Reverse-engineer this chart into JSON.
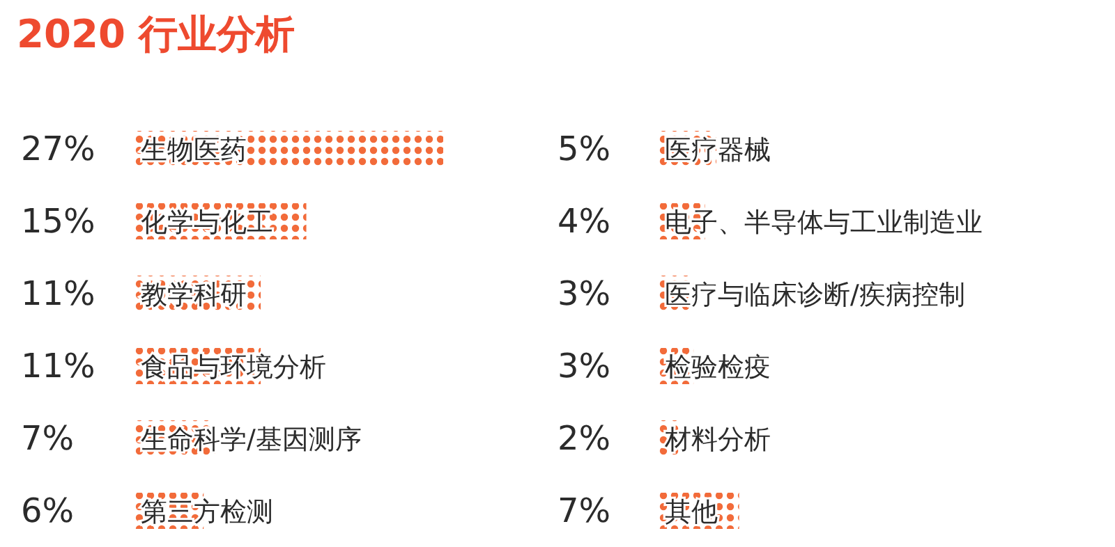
{
  "chart_data": [
    {
      "type": "bar",
      "orientation": "horizontal",
      "title": "2020 行业分析",
      "color": "#f26b3a",
      "categories": [
        "生物医药",
        "化学与化工",
        "教学科研",
        "食品与环境分析",
        "生命科学/基因测序",
        "第三方检测"
      ],
      "values": [
        27,
        15,
        11,
        11,
        7,
        6
      ],
      "value_labels": [
        "27%",
        "15%",
        "11%",
        "11%",
        "7%",
        "6%"
      ]
    },
    {
      "type": "bar",
      "orientation": "horizontal",
      "color": "#f26b3a",
      "categories": [
        "医疗器械",
        "电子、半导体与工业制造业",
        "医疗与临床诊断/疾病控制",
        "检验检疫",
        "材料分析",
        "其他"
      ],
      "values": [
        5,
        4,
        3,
        3,
        2,
        7
      ],
      "value_labels": [
        "5%",
        "4%",
        "3%",
        "3%",
        "2%",
        "7%"
      ]
    }
  ]
}
